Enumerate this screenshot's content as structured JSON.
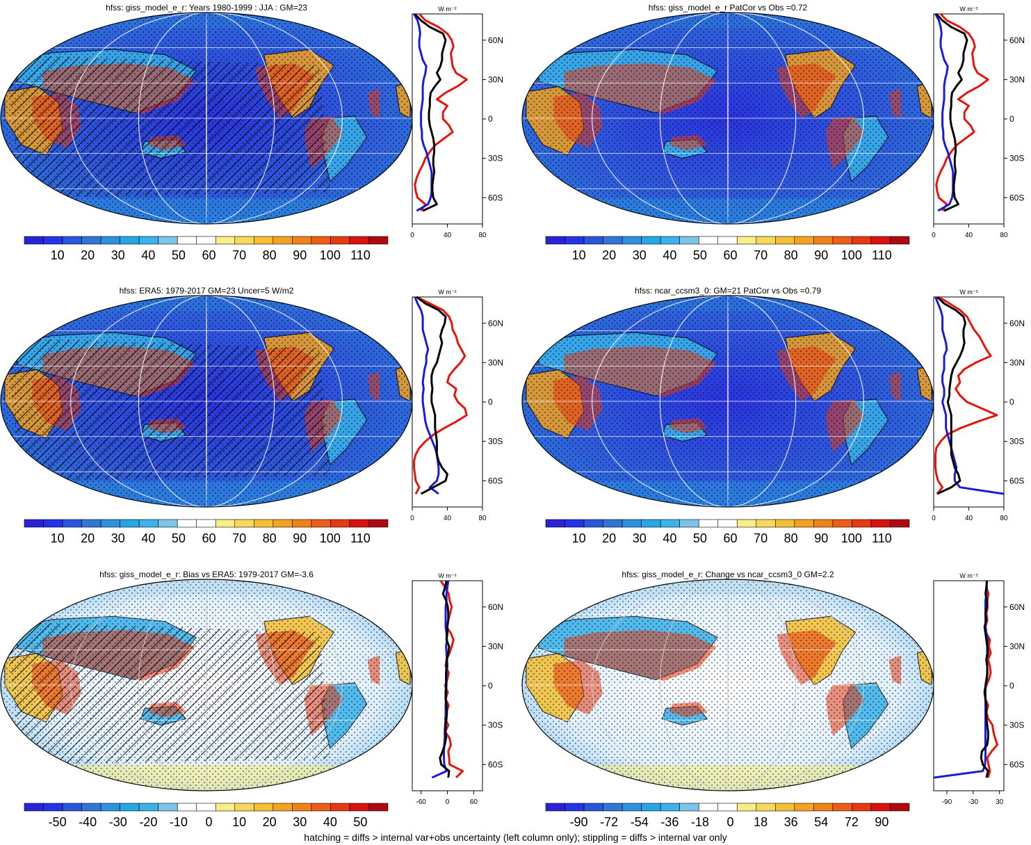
{
  "footnote": "hatching = diffs > internal var+obs uncertainty (left column only); stippling = diffs > internal var only",
  "unit_label": "W m⁻²",
  "lat_ticks": [
    "60N",
    "30N",
    "0",
    "30S",
    "60S"
  ],
  "lat_values": [
    60,
    30,
    0,
    -30,
    -60
  ],
  "colormap": {
    "colors": [
      "#2a22d6",
      "#2433e8",
      "#2a55dd",
      "#2f76d8",
      "#2c92e0",
      "#25a6e6",
      "#3ab2ea",
      "#7cc4e8",
      "#ffffff",
      "#ffffff",
      "#f8ee88",
      "#f7d95a",
      "#f5c035",
      "#f4a21f",
      "#f08218",
      "#ec5f14",
      "#e83a12",
      "#d81210",
      "#b00810"
    ]
  },
  "chart_data": [
    {
      "type": "heatmap",
      "title": "hfss: giss_model_e_r: Years 1980-1999 : JJA : GM=23",
      "colorbar_ticks": [
        "10",
        "20",
        "30",
        "40",
        "50",
        "60",
        "70",
        "80",
        "90",
        "100",
        "110"
      ],
      "hatching": true,
      "stippling": true,
      "zonal_profile": {
        "xlim": [
          0,
          80
        ],
        "xticks": [
          "0",
          "40",
          "80"
        ],
        "lat": [
          80,
          75,
          70,
          65,
          60,
          55,
          50,
          45,
          40,
          35,
          30,
          25,
          20,
          15,
          10,
          5,
          0,
          -5,
          -10,
          -15,
          -20,
          -25,
          -30,
          -35,
          -40,
          -45,
          -50,
          -55,
          -60,
          -65,
          -70
        ],
        "series": [
          {
            "color": "#e8140c",
            "values": [
              8,
              15,
              30,
              40,
              45,
              47,
              44,
              45,
              46,
              50,
              62,
              52,
              38,
              28,
              40,
              35,
              35,
              42,
              46,
              36,
              26,
              20,
              15,
              12,
              8,
              5,
              3,
              4,
              6,
              15,
              10
            ]
          },
          {
            "color": "#1a1adc",
            "values": [
              2,
              6,
              8,
              9,
              8,
              8,
              10,
              12,
              16,
              15,
              13,
              12,
              12,
              12,
              11,
              10,
              10,
              10,
              11,
              11,
              13,
              16,
              18,
              20,
              22,
              22,
              22,
              22,
              21,
              18,
              5
            ]
          },
          {
            "color": "#000000",
            "values": [
              3,
              10,
              20,
              35,
              38,
              36,
              34,
              34,
              32,
              28,
              32,
              26,
              21,
              20,
              20,
              19,
              19,
              20,
              22,
              24,
              25,
              25,
              24,
              24,
              25,
              24,
              23,
              23,
              24,
              28,
              12
            ]
          }
        ]
      }
    },
    {
      "type": "heatmap",
      "title": "hfss: giss_model_e_r PatCor vs Obs =0.72",
      "colorbar_ticks": [
        "10",
        "20",
        "30",
        "40",
        "50",
        "60",
        "70",
        "80",
        "90",
        "100",
        "110"
      ],
      "hatching": false,
      "stippling": true,
      "zonal_profile": {
        "xlim": [
          0,
          80
        ],
        "xticks": [
          "0",
          "40",
          "80"
        ],
        "lat": [
          80,
          75,
          70,
          65,
          60,
          55,
          50,
          45,
          40,
          35,
          30,
          25,
          20,
          15,
          10,
          5,
          0,
          -5,
          -10,
          -15,
          -20,
          -25,
          -30,
          -35,
          -40,
          -45,
          -50,
          -55,
          -60,
          -65,
          -70
        ],
        "series": [
          {
            "color": "#e8140c",
            "values": [
              8,
              15,
              30,
              40,
              45,
              47,
              44,
              45,
              46,
              50,
              62,
              52,
              38,
              28,
              40,
              35,
              35,
              42,
              46,
              36,
              26,
              20,
              15,
              12,
              8,
              5,
              3,
              4,
              6,
              15,
              10
            ]
          },
          {
            "color": "#1a1adc",
            "values": [
              2,
              6,
              8,
              9,
              8,
              8,
              10,
              12,
              16,
              15,
              13,
              12,
              12,
              12,
              11,
              10,
              10,
              10,
              11,
              11,
              13,
              16,
              18,
              20,
              22,
              22,
              22,
              22,
              21,
              18,
              5
            ]
          },
          {
            "color": "#000000",
            "values": [
              3,
              10,
              20,
              35,
              38,
              36,
              34,
              34,
              32,
              28,
              32,
              26,
              21,
              20,
              20,
              19,
              19,
              20,
              22,
              24,
              25,
              25,
              24,
              24,
              25,
              24,
              23,
              23,
              24,
              28,
              12
            ]
          }
        ]
      }
    },
    {
      "type": "heatmap",
      "title": "hfss: ERA5: 1979-2017 GM=23 Uncer=5 W/m2",
      "colorbar_ticks": [
        "10",
        "20",
        "30",
        "40",
        "50",
        "60",
        "70",
        "80",
        "90",
        "100",
        "110"
      ],
      "hatching": true,
      "stippling": true,
      "zonal_profile": {
        "xlim": [
          0,
          80
        ],
        "xticks": [
          "0",
          "40",
          "80"
        ],
        "lat": [
          80,
          75,
          70,
          65,
          60,
          55,
          50,
          45,
          40,
          35,
          30,
          25,
          20,
          15,
          10,
          5,
          0,
          -5,
          -10,
          -15,
          -20,
          -25,
          -30,
          -35,
          -40,
          -45,
          -50,
          -55,
          -60,
          -65,
          -70
        ],
        "series": [
          {
            "color": "#e8140c",
            "values": [
              5,
              20,
              35,
              42,
              45,
              46,
              50,
              52,
              56,
              60,
              55,
              48,
              42,
              40,
              50,
              48,
              52,
              60,
              62,
              50,
              36,
              24,
              15,
              8,
              4,
              2,
              2,
              3,
              4,
              8,
              4
            ]
          },
          {
            "color": "#1a1adc",
            "values": [
              3,
              6,
              10,
              12,
              12,
              12,
              14,
              16,
              18,
              16,
              16,
              14,
              13,
              12,
              13,
              12,
              12,
              13,
              14,
              15,
              17,
              20,
              23,
              26,
              28,
              29,
              30,
              30,
              28,
              20,
              30
            ]
          },
          {
            "color": "#000000",
            "values": [
              5,
              15,
              30,
              38,
              37,
              34,
              32,
              34,
              32,
              30,
              28,
              24,
              22,
              22,
              23,
              22,
              22,
              24,
              26,
              26,
              26,
              27,
              28,
              28,
              28,
              30,
              34,
              40,
              38,
              24,
              10
            ]
          }
        ]
      }
    },
    {
      "type": "heatmap",
      "title": "hfss: ncar_ccsm3_0: GM=21 PatCor vs Obs =0.79",
      "colorbar_ticks": [
        "10",
        "20",
        "30",
        "40",
        "50",
        "60",
        "70",
        "80",
        "90",
        "100",
        "110"
      ],
      "hatching": false,
      "stippling": true,
      "zonal_profile": {
        "xlim": [
          0,
          80
        ],
        "xticks": [
          "0",
          "40",
          "80"
        ],
        "lat": [
          80,
          75,
          70,
          65,
          60,
          55,
          50,
          45,
          40,
          35,
          30,
          25,
          20,
          15,
          10,
          5,
          0,
          -5,
          -10,
          -15,
          -20,
          -25,
          -30,
          -35,
          -40,
          -45,
          -50,
          -55,
          -60,
          -65,
          -70
        ],
        "series": [
          {
            "color": "#e8140c",
            "values": [
              6,
              18,
              30,
              38,
              42,
              46,
              52,
              56,
              60,
              65,
              48,
              35,
              28,
              30,
              25,
              30,
              38,
              55,
              72,
              50,
              30,
              15,
              8,
              3,
              2,
              2,
              2,
              3,
              5,
              10,
              4
            ]
          },
          {
            "color": "#1a1adc",
            "values": [
              2,
              5,
              8,
              10,
              10,
              10,
              12,
              14,
              15,
              12,
              12,
              12,
              10,
              10,
              12,
              12,
              10,
              12,
              14,
              14,
              14,
              16,
              18,
              20,
              22,
              24,
              26,
              24,
              24,
              30,
              80
            ]
          },
          {
            "color": "#000000",
            "values": [
              4,
              12,
              25,
              34,
              36,
              34,
              34,
              35,
              33,
              30,
              26,
              22,
              20,
              19,
              18,
              18,
              16,
              18,
              20,
              20,
              20,
              20,
              20,
              20,
              20,
              22,
              24,
              28,
              30,
              20,
              4
            ]
          }
        ]
      }
    },
    {
      "type": "heatmap",
      "title": "hfss: giss_model_e_r: Bias vs ERA5: 1979-2017 GM=-3.6",
      "colorbar_ticks": [
        "-50",
        "-40",
        "-30",
        "-20",
        "-10",
        "0",
        "10",
        "20",
        "30",
        "40",
        "50"
      ],
      "hatching": true,
      "stippling": true,
      "zonal_profile": {
        "xlim": [
          -80,
          80
        ],
        "xticks": [
          "-60",
          "0",
          "60"
        ],
        "lat": [
          80,
          75,
          70,
          65,
          60,
          55,
          50,
          45,
          40,
          35,
          30,
          25,
          20,
          15,
          10,
          5,
          0,
          -5,
          -10,
          -15,
          -20,
          -25,
          -30,
          -35,
          -40,
          -45,
          -50,
          -55,
          -60,
          -65,
          -70
        ],
        "series": [
          {
            "color": "#e8140c",
            "values": [
              -15,
              -5,
              3,
              5,
              10,
              6,
              2,
              -2,
              8,
              14,
              10,
              5,
              -2,
              -4,
              3,
              0,
              -5,
              1,
              -4,
              3,
              -2,
              -5,
              2,
              -5,
              5,
              8,
              2,
              4,
              5,
              35,
              20
            ]
          },
          {
            "color": "#1a1adc",
            "values": [
              2,
              0,
              -2,
              -2,
              -4,
              -4,
              -4,
              -4,
              -2,
              -1,
              -3,
              -2,
              -1,
              0,
              -2,
              -2,
              -2,
              -3,
              -3,
              -4,
              -4,
              -4,
              -5,
              -6,
              -6,
              -7,
              -8,
              -8,
              -7,
              -2,
              -35
            ]
          },
          {
            "color": "#000000",
            "values": [
              -2,
              -5,
              -10,
              -3,
              1,
              2,
              2,
              0,
              0,
              -2,
              4,
              2,
              -1,
              -2,
              -3,
              -3,
              -3,
              -4,
              -4,
              -2,
              -1,
              -2,
              -4,
              -4,
              -3,
              -6,
              -11,
              -17,
              -14,
              4,
              2
            ]
          }
        ]
      }
    },
    {
      "type": "heatmap",
      "title": "hfss: giss_model_e_r: Change vs ncar_ccsm3_0 GM=2.2",
      "colorbar_ticks": [
        "-90",
        "-72",
        "-54",
        "-36",
        "-18",
        "0",
        "18",
        "36",
        "54",
        "72",
        "90"
      ],
      "hatching": false,
      "stippling": true,
      "zonal_profile": {
        "xlim": [
          -120,
          40
        ],
        "xticks": [
          "-90",
          "-30",
          "30"
        ],
        "lat": [
          80,
          75,
          70,
          65,
          60,
          55,
          50,
          45,
          40,
          35,
          30,
          25,
          20,
          15,
          10,
          5,
          0,
          -5,
          -10,
          -15,
          -20,
          -25,
          -30,
          -35,
          -40,
          -45,
          -50,
          -55,
          -60,
          -65,
          -70
        ],
        "series": [
          {
            "color": "#e8140c",
            "values": [
              2,
              0,
              5,
              2,
              3,
              0,
              2,
              -2,
              0,
              8,
              6,
              10,
              4,
              8,
              10,
              6,
              0,
              -4,
              -2,
              4,
              0,
              4,
              14,
              16,
              20,
              25,
              12,
              2,
              5,
              8,
              4
            ]
          },
          {
            "color": "#1a1adc",
            "values": [
              1,
              1,
              0,
              -2,
              -2,
              -2,
              -2,
              -2,
              0,
              3,
              2,
              2,
              0,
              2,
              3,
              0,
              -2,
              -2,
              -2,
              -2,
              -2,
              -2,
              -2,
              -2,
              -2,
              -2,
              -2,
              -2,
              -3,
              -8,
              -120
            ]
          },
          {
            "color": "#000000",
            "values": [
              1,
              0,
              -2,
              2,
              1,
              -2,
              0,
              -4,
              -2,
              0,
              2,
              4,
              0,
              2,
              2,
              1,
              -2,
              -4,
              -2,
              0,
              0,
              0,
              2,
              4,
              4,
              2,
              -10,
              -12,
              -8,
              4,
              0
            ]
          }
        ]
      }
    }
  ]
}
